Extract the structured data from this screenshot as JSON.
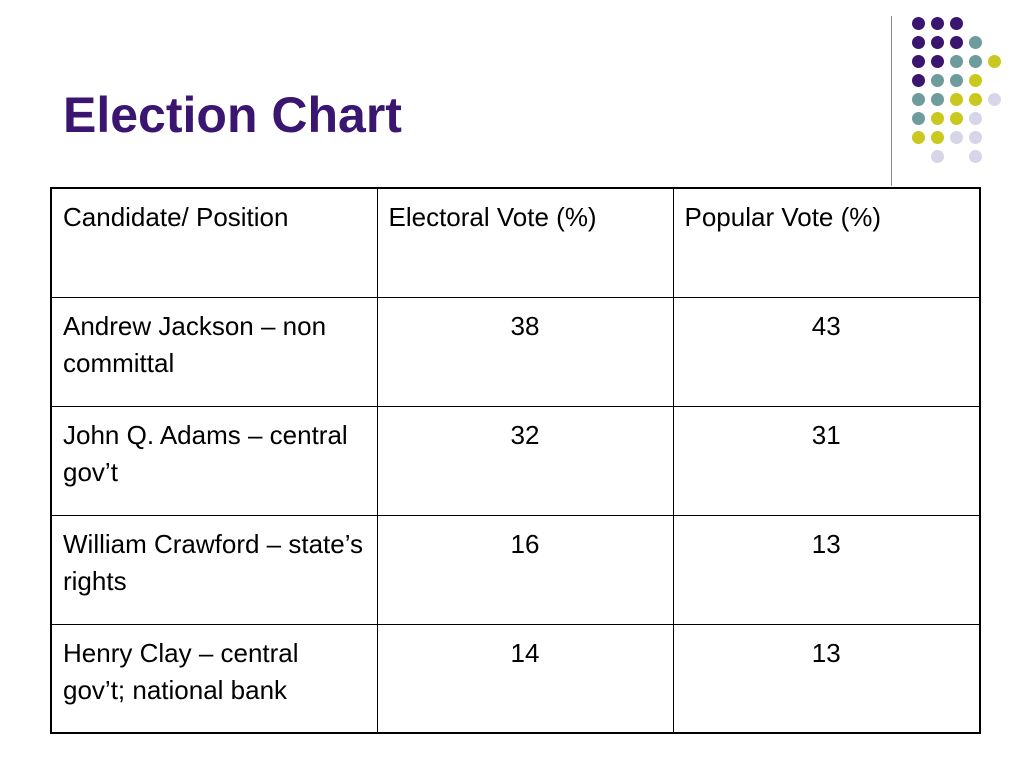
{
  "slide": {
    "title": "Election Chart"
  },
  "colors": {
    "title": "#3a1670",
    "dot_dark_purple": "#3a1670",
    "dot_teal": "#6e9c9c",
    "dot_yellow": "#c8c81e",
    "dot_lavender": "#d6d6e8"
  },
  "table": {
    "headers": [
      "Candidate/ Position",
      "Electoral Vote (%)",
      "Popular Vote (%)"
    ],
    "rows": [
      {
        "candidate": "Andrew Jackson – non committal",
        "electoral": "38",
        "popular": "43"
      },
      {
        "candidate": "John Q. Adams – central gov’t",
        "electoral": "32",
        "popular": "31"
      },
      {
        "candidate": "William Crawford – state’s rights",
        "electoral": "16",
        "popular": "13"
      },
      {
        "candidate": "Henry Clay – central gov’t; national bank",
        "electoral": "14",
        "popular": "13"
      }
    ]
  }
}
